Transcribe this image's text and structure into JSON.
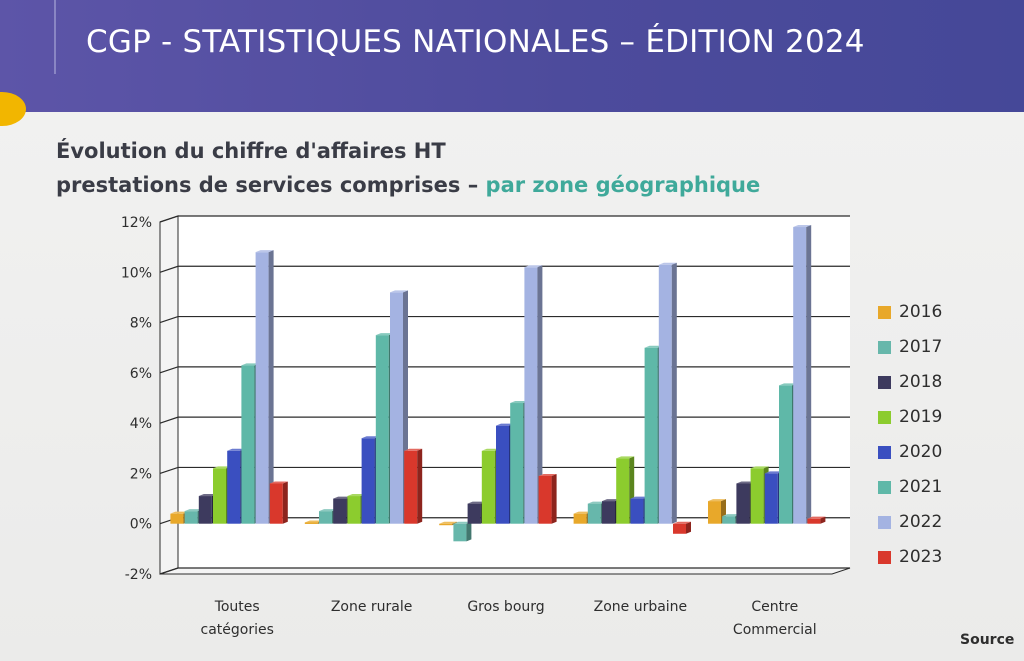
{
  "header": {
    "title": "CGP - STATISTIQUES NATIONALES – ÉDITION 2024"
  },
  "slide": {
    "title_line1": "Évolution du chiffre d'affaires HT",
    "title_line2_main": "prestations de services comprises – ",
    "title_line2_accent": "par zone géographique",
    "source_label": "Source"
  },
  "colors": {
    "header_bg": "#4d4b9c",
    "title_accent": "#3fa99a",
    "accent_dot": "#f2b600"
  },
  "chart_data": {
    "type": "bar",
    "title": "",
    "xlabel": "",
    "ylabel": "",
    "ylim": [
      -2,
      12
    ],
    "yticks": [
      -2,
      0,
      2,
      4,
      6,
      8,
      10,
      12
    ],
    "ytick_labels": [
      "-2%",
      "0%",
      "2%",
      "4%",
      "6%",
      "8%",
      "10%",
      "12%"
    ],
    "grid": true,
    "legend_position": "right",
    "categories": [
      [
        "Toutes",
        "catégories"
      ],
      [
        "Zone rurale"
      ],
      [
        "Gros bourg"
      ],
      [
        "Zone urbaine"
      ],
      [
        "Centre",
        "Commercial"
      ]
    ],
    "series": [
      {
        "name": "2016",
        "color": "#e8a82a",
        "values": [
          0.4,
          0.05,
          -0.05,
          0.4,
          0.9
        ]
      },
      {
        "name": "2017",
        "color": "#67b7ab",
        "values": [
          0.5,
          0.5,
          -0.7,
          0.8,
          0.3
        ]
      },
      {
        "name": "2018",
        "color": "#3d3a5e",
        "values": [
          1.1,
          1.0,
          0.8,
          0.9,
          1.6
        ]
      },
      {
        "name": "2019",
        "color": "#8ccc2e",
        "values": [
          2.2,
          1.1,
          2.9,
          2.6,
          2.2
        ]
      },
      {
        "name": "2020",
        "color": "#3a4fc0",
        "values": [
          2.9,
          3.4,
          3.9,
          1.0,
          2.0
        ]
      },
      {
        "name": "2021",
        "color": "#5fb8a8",
        "values": [
          6.3,
          7.5,
          4.8,
          7.0,
          5.5
        ]
      },
      {
        "name": "2022",
        "color": "#a4b3e2",
        "values": [
          10.8,
          9.2,
          10.2,
          10.3,
          11.8
        ]
      },
      {
        "name": "2023",
        "color": "#d9382c",
        "values": [
          1.6,
          2.9,
          1.9,
          -0.4,
          0.2
        ]
      }
    ]
  }
}
